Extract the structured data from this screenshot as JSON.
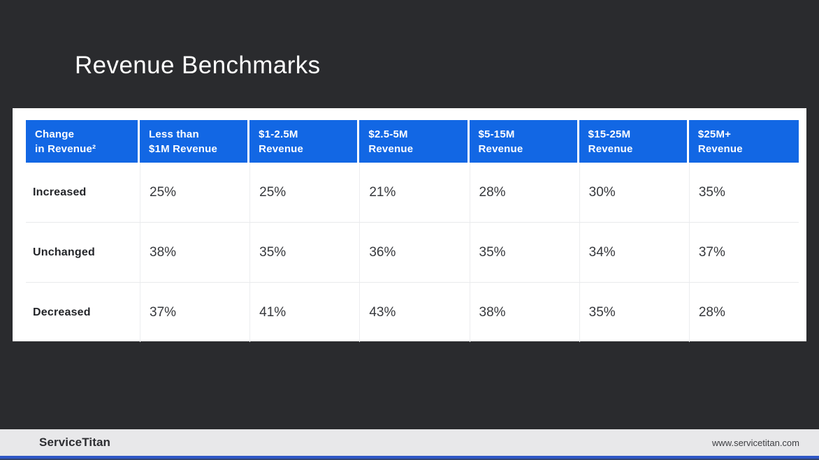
{
  "slide": {
    "title": "Revenue Benchmarks"
  },
  "table": {
    "columns": [
      "Change\nin Revenue²",
      "Less than\n$1M Revenue",
      "$1-2.5M\nRevenue",
      "$2.5-5M\nRevenue",
      "$5-15M\nRevenue",
      "$15-25M\nRevenue",
      "$25M+\nRevenue"
    ],
    "rows": [
      {
        "label": "Increased",
        "values": [
          "25%",
          "25%",
          "21%",
          "28%",
          "30%",
          "35%"
        ]
      },
      {
        "label": "Unchanged",
        "values": [
          "38%",
          "35%",
          "36%",
          "35%",
          "34%",
          "37%"
        ]
      },
      {
        "label": "Decreased",
        "values": [
          "37%",
          "41%",
          "43%",
          "38%",
          "35%",
          "28%"
        ]
      }
    ]
  },
  "footer": {
    "brand": "ServiceTitan",
    "url": "www.servicetitan.com"
  },
  "colors": {
    "background": "#2a2b2e",
    "header_blue": "#1267e4",
    "footer_gray": "#e8e8ea",
    "bottom_bar_blue": "#2e57c6",
    "card_white": "#ffffff"
  }
}
